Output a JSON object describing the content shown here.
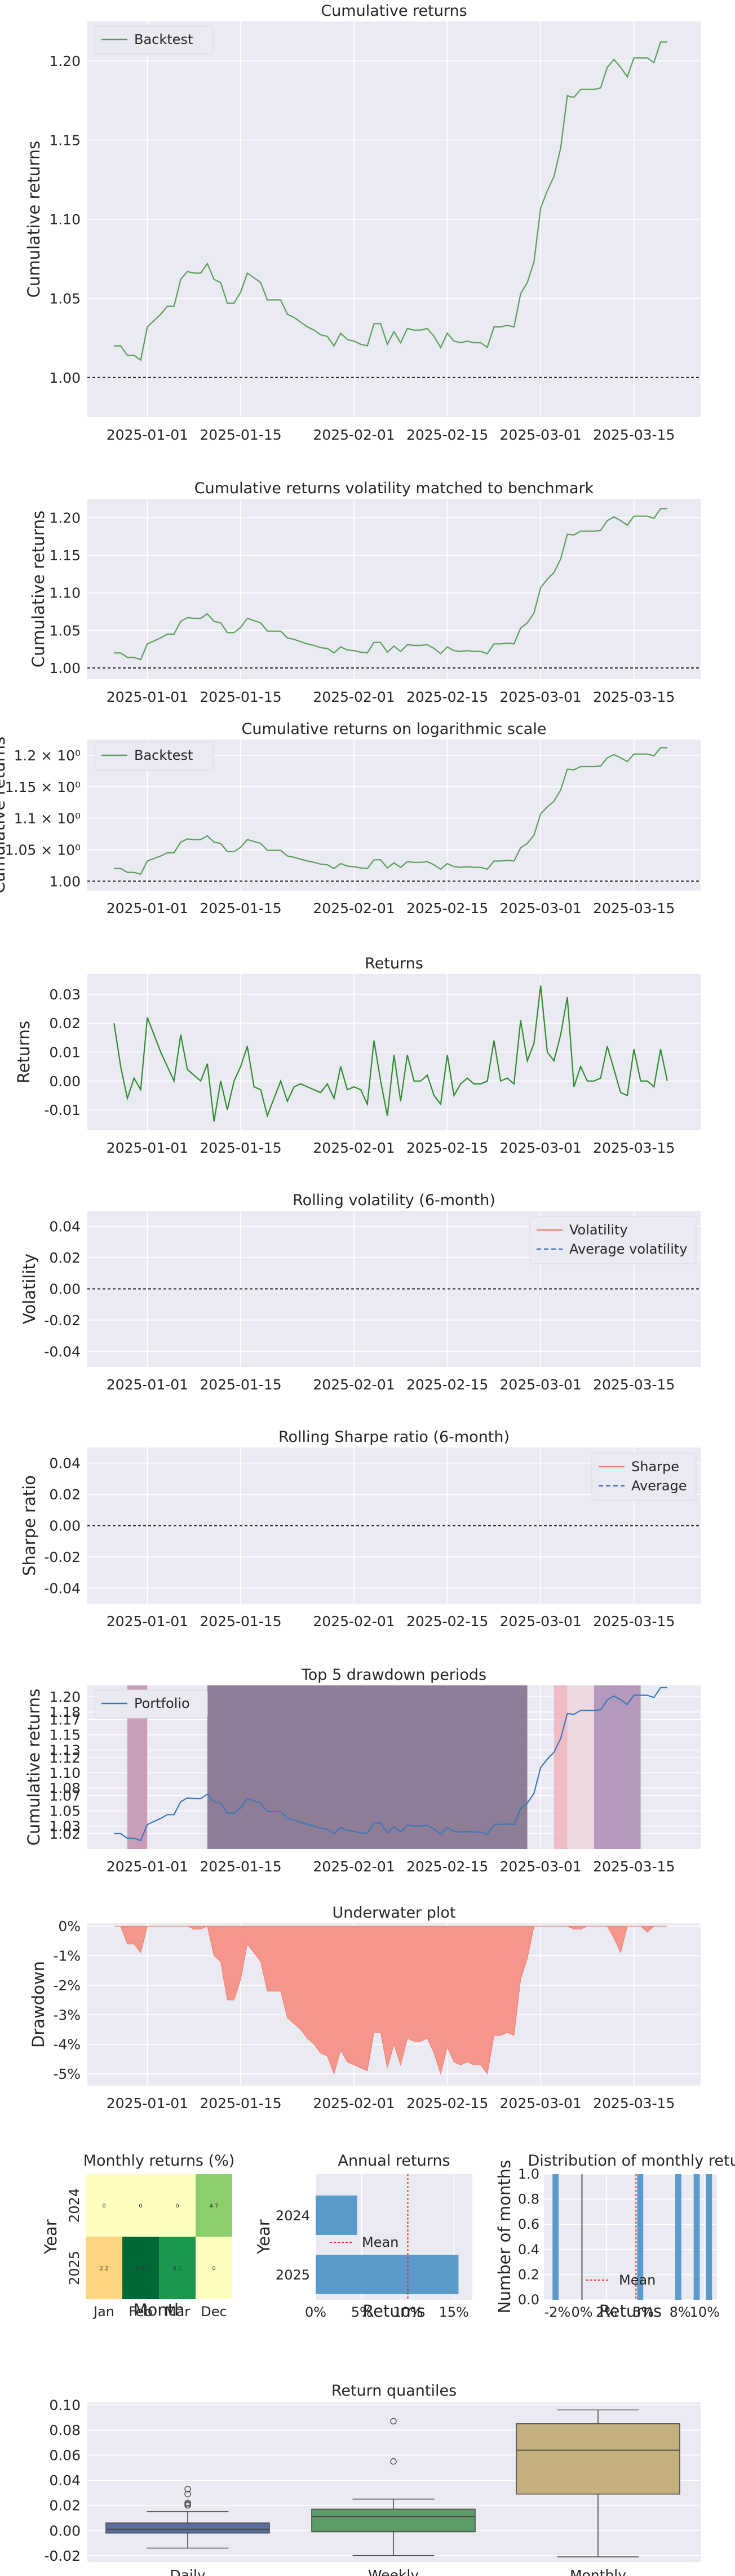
{
  "colors": {
    "panel_bg": "#eaeaf2",
    "grid": "#ffffff",
    "green_line": "#5a9d5a",
    "returns_line": "#2e8b2e",
    "vol_line": "#f08070",
    "avg_line": "#4c72b0",
    "portfolio_line": "#3b78b8",
    "drawdown_fill": "#f4968c",
    "bar_blue": "#5b9bcb",
    "mean_line": "#e0352b"
  },
  "x_dates": {
    "start": "2024-12-23",
    "end": "2025-03-25",
    "ticks": [
      "2025-01-01",
      "2025-01-15",
      "2025-02-01",
      "2025-02-15",
      "2025-03-01",
      "2025-03-15"
    ]
  },
  "chart_data": [
    {
      "id": "cumulative_returns",
      "type": "line",
      "title": "Cumulative returns",
      "ylabel": "Cumulative returns",
      "ylim": [
        0.975,
        1.225
      ],
      "yticks": [
        1.0,
        1.05,
        1.1,
        1.15,
        1.2
      ],
      "ytick_labels": [
        "1.00",
        "1.05",
        "1.10",
        "1.15",
        "1.20"
      ],
      "hline": 1.0,
      "legend": "Backtest",
      "x": [
        "2024-12-27",
        "2024-12-28",
        "2024-12-29",
        "2024-12-30",
        "2024-12-31",
        "2025-01-01",
        "2025-01-02",
        "2025-01-03",
        "2025-01-04",
        "2025-01-05",
        "2025-01-06",
        "2025-01-07",
        "2025-01-08",
        "2025-01-09",
        "2025-01-10",
        "2025-01-11",
        "2025-01-12",
        "2025-01-13",
        "2025-01-14",
        "2025-01-15",
        "2025-01-16",
        "2025-01-17",
        "2025-01-18",
        "2025-01-19",
        "2025-01-20",
        "2025-01-21",
        "2025-01-22",
        "2025-01-23",
        "2025-01-24",
        "2025-01-25",
        "2025-01-26",
        "2025-01-27",
        "2025-01-28",
        "2025-01-29",
        "2025-01-30",
        "2025-01-31",
        "2025-02-01",
        "2025-02-02",
        "2025-02-03",
        "2025-02-04",
        "2025-02-05",
        "2025-02-06",
        "2025-02-07",
        "2025-02-08",
        "2025-02-09",
        "2025-02-10",
        "2025-02-11",
        "2025-02-12",
        "2025-02-13",
        "2025-02-14",
        "2025-02-15",
        "2025-02-16",
        "2025-02-17",
        "2025-02-18",
        "2025-02-19",
        "2025-02-20",
        "2025-02-21",
        "2025-02-22",
        "2025-02-23",
        "2025-02-24",
        "2025-02-25",
        "2025-02-26",
        "2025-02-27",
        "2025-02-28",
        "2025-03-01",
        "2025-03-02",
        "2025-03-03",
        "2025-03-04",
        "2025-03-05",
        "2025-03-06",
        "2025-03-07",
        "2025-03-08",
        "2025-03-09",
        "2025-03-10",
        "2025-03-11",
        "2025-03-12",
        "2025-03-13",
        "2025-03-14",
        "2025-03-15",
        "2025-03-16",
        "2025-03-17",
        "2025-03-18",
        "2025-03-19",
        "2025-03-20"
      ],
      "y": [
        1.02,
        1.02,
        1.014,
        1.014,
        1.011,
        1.032,
        1.036,
        1.04,
        1.045,
        1.045,
        1.062,
        1.067,
        1.066,
        1.066,
        1.072,
        1.062,
        1.06,
        1.047,
        1.047,
        1.054,
        1.066,
        1.063,
        1.06,
        1.049,
        1.049,
        1.049,
        1.04,
        1.038,
        1.035,
        1.032,
        1.03,
        1.027,
        1.026,
        1.02,
        1.028,
        1.024,
        1.023,
        1.021,
        1.02,
        1.034,
        1.034,
        1.021,
        1.029,
        1.022,
        1.031,
        1.03,
        1.03,
        1.031,
        1.026,
        1.019,
        1.028,
        1.023,
        1.022,
        1.023,
        1.022,
        1.022,
        1.019,
        1.032,
        1.032,
        1.033,
        1.032,
        1.053,
        1.06,
        1.073,
        1.107,
        1.118,
        1.127,
        1.145,
        1.178,
        1.177,
        1.182,
        1.182,
        1.182,
        1.183,
        1.196,
        1.201,
        1.196,
        1.19,
        1.202,
        1.202,
        1.202,
        1.199,
        1.212,
        1.212
      ]
    },
    {
      "id": "vol_matched",
      "type": "line",
      "title": "Cumulative returns volatility matched to benchmark",
      "ylabel": "Cumulative returns",
      "ylim": [
        0.985,
        1.225
      ],
      "yticks": [
        1.0,
        1.05,
        1.1,
        1.15,
        1.2
      ],
      "ytick_labels": [
        "1.00",
        "1.05",
        "1.10",
        "1.15",
        "1.20"
      ],
      "hline": 1.0,
      "same_as": "cumulative_returns"
    },
    {
      "id": "log_scale",
      "type": "line",
      "title": "Cumulative returns on logarithmic scale",
      "ylabel": "Cumulative returns",
      "ylim": [
        0.985,
        1.225
      ],
      "yticks": [
        1.0,
        1.05,
        1.1,
        1.15,
        1.2
      ],
      "ytick_labels": [
        "1.00",
        "1.05 × 10⁰",
        "1.1 × 10⁰",
        "1.15 × 10⁰",
        "1.2 × 10⁰"
      ],
      "hline": 1.0,
      "legend": "Backtest",
      "same_as": "cumulative_returns"
    },
    {
      "id": "returns",
      "type": "line",
      "title": "Returns",
      "ylabel": "Returns",
      "ylim": [
        -0.017,
        0.037
      ],
      "yticks": [
        -0.01,
        0.0,
        0.01,
        0.02,
        0.03
      ],
      "ytick_labels": [
        "-0.01",
        "0.00",
        "0.01",
        "0.02",
        "0.03"
      ],
      "x": [
        "2024-12-27",
        "2024-12-28",
        "2024-12-29",
        "2024-12-30",
        "2024-12-31",
        "2025-01-01",
        "2025-01-02",
        "2025-01-03",
        "2025-01-04",
        "2025-01-05",
        "2025-01-06",
        "2025-01-07",
        "2025-01-08",
        "2025-01-09",
        "2025-01-10",
        "2025-01-11",
        "2025-01-12",
        "2025-01-13",
        "2025-01-14",
        "2025-01-15",
        "2025-01-16",
        "2025-01-17",
        "2025-01-18",
        "2025-01-19",
        "2025-01-20",
        "2025-01-21",
        "2025-01-22",
        "2025-01-23",
        "2025-01-24",
        "2025-01-25",
        "2025-01-26",
        "2025-01-27",
        "2025-01-28",
        "2025-01-29",
        "2025-01-30",
        "2025-01-31",
        "2025-02-01",
        "2025-02-02",
        "2025-02-03",
        "2025-02-04",
        "2025-02-05",
        "2025-02-06",
        "2025-02-07",
        "2025-02-08",
        "2025-02-09",
        "2025-02-10",
        "2025-02-11",
        "2025-02-12",
        "2025-02-13",
        "2025-02-14",
        "2025-02-15",
        "2025-02-16",
        "2025-02-17",
        "2025-02-18",
        "2025-02-19",
        "2025-02-20",
        "2025-02-21",
        "2025-02-22",
        "2025-02-23",
        "2025-02-24",
        "2025-02-25",
        "2025-02-26",
        "2025-02-27",
        "2025-02-28",
        "2025-03-01",
        "2025-03-02",
        "2025-03-03",
        "2025-03-04",
        "2025-03-05",
        "2025-03-06",
        "2025-03-07",
        "2025-03-08",
        "2025-03-09",
        "2025-03-10",
        "2025-03-11",
        "2025-03-12",
        "2025-03-13",
        "2025-03-14",
        "2025-03-15",
        "2025-03-16",
        "2025-03-17",
        "2025-03-18",
        "2025-03-19",
        "2025-03-20"
      ],
      "y": [
        0.02,
        0.005,
        -0.006,
        0.001,
        -0.003,
        0.022,
        0.016,
        0.01,
        0.005,
        0.0,
        0.016,
        0.004,
        0.002,
        0.0,
        0.006,
        -0.014,
        0.0,
        -0.01,
        0.0,
        0.005,
        0.012,
        -0.002,
        -0.003,
        -0.012,
        -0.006,
        0.0,
        -0.007,
        -0.002,
        -0.001,
        -0.002,
        -0.003,
        -0.004,
        -0.001,
        -0.006,
        0.005,
        -0.003,
        -0.002,
        -0.003,
        -0.008,
        0.014,
        0.0,
        -0.012,
        0.009,
        -0.007,
        0.009,
        0.0,
        0.0,
        0.002,
        -0.005,
        -0.008,
        0.009,
        -0.005,
        -0.001,
        0.001,
        -0.001,
        -0.001,
        0.0,
        0.014,
        0.0,
        0.001,
        -0.001,
        0.021,
        0.007,
        0.013,
        0.033,
        0.01,
        0.007,
        0.016,
        0.029,
        -0.002,
        0.005,
        0.0,
        0.0,
        0.001,
        0.012,
        0.004,
        -0.004,
        -0.005,
        0.011,
        0.0,
        0.0,
        -0.002,
        0.011,
        0.0
      ]
    },
    {
      "id": "rolling_vol",
      "type": "line",
      "title": "Rolling volatility (6-month)",
      "ylabel": "Volatility",
      "ylim": [
        -0.05,
        0.05
      ],
      "yticks": [
        -0.04,
        -0.02,
        0.0,
        0.02,
        0.04
      ],
      "ytick_labels": [
        "-0.04",
        "-0.02",
        "0.00",
        "0.02",
        "0.04"
      ],
      "hline": 0.0,
      "series": [
        {
          "name": "Volatility",
          "values": []
        },
        {
          "name": "Average volatility",
          "values": []
        }
      ]
    },
    {
      "id": "rolling_sharpe",
      "type": "line",
      "title": "Rolling Sharpe ratio (6-month)",
      "ylabel": "Sharpe ratio",
      "ylim": [
        -0.05,
        0.05
      ],
      "yticks": [
        -0.04,
        -0.02,
        0.0,
        0.02,
        0.04
      ],
      "ytick_labels": [
        "-0.04",
        "-0.02",
        "0.00",
        "0.02",
        "0.04"
      ],
      "hline": 0.0,
      "series": [
        {
          "name": "Sharpe",
          "values": []
        },
        {
          "name": "Average",
          "values": []
        }
      ]
    },
    {
      "id": "drawdown_periods",
      "type": "line",
      "title": "Top 5 drawdown periods",
      "ylabel": "Cumulative returns",
      "ylim": [
        1.0,
        1.215
      ],
      "yticks": [
        1.02,
        1.03,
        1.05,
        1.07,
        1.08,
        1.1,
        1.12,
        1.13,
        1.15,
        1.17,
        1.18,
        1.2
      ],
      "ytick_labels": [
        "1.02",
        "1.03",
        "1.05",
        "1.07",
        "1.08",
        "1.10",
        "1.12",
        "1.13",
        "1.15",
        "1.17",
        "1.18",
        "1.20"
      ],
      "legend": "Portfolio",
      "periods": [
        {
          "start": "2024-12-29",
          "end": "2025-01-01",
          "color": "#c38fb0"
        },
        {
          "start": "2025-01-10",
          "end": "2025-02-27",
          "color": "#7d6a87"
        },
        {
          "start": "2025-03-03",
          "end": "2025-03-05",
          "color": "#f0b3bd"
        },
        {
          "start": "2025-03-05",
          "end": "2025-03-09",
          "color": "#edd6de"
        },
        {
          "start": "2025-03-09",
          "end": "2025-03-16",
          "color": "#a98cb4"
        }
      ],
      "same_as": "cumulative_returns"
    },
    {
      "id": "underwater",
      "type": "area",
      "title": "Underwater plot",
      "ylabel": "Drawdown",
      "ylim": [
        -5.4,
        0.1
      ],
      "yticks": [
        0,
        -1,
        -2,
        -3,
        -4,
        -5
      ],
      "ytick_labels": [
        "0%",
        "-1%",
        "-2%",
        "-3%",
        "-4%",
        "-5%"
      ],
      "x": [
        "2024-12-27",
        "2024-12-28",
        "2024-12-29",
        "2024-12-30",
        "2024-12-31",
        "2025-01-01",
        "2025-01-02",
        "2025-01-03",
        "2025-01-04",
        "2025-01-05",
        "2025-01-06",
        "2025-01-07",
        "2025-01-08",
        "2025-01-09",
        "2025-01-10",
        "2025-01-11",
        "2025-01-12",
        "2025-01-13",
        "2025-01-14",
        "2025-01-15",
        "2025-01-16",
        "2025-01-17",
        "2025-01-18",
        "2025-01-19",
        "2025-01-20",
        "2025-01-21",
        "2025-01-22",
        "2025-01-23",
        "2025-01-24",
        "2025-01-25",
        "2025-01-26",
        "2025-01-27",
        "2025-01-28",
        "2025-01-29",
        "2025-01-30",
        "2025-01-31",
        "2025-02-01",
        "2025-02-02",
        "2025-02-03",
        "2025-02-04",
        "2025-02-05",
        "2025-02-06",
        "2025-02-07",
        "2025-02-08",
        "2025-02-09",
        "2025-02-10",
        "2025-02-11",
        "2025-02-12",
        "2025-02-13",
        "2025-02-14",
        "2025-02-15",
        "2025-02-16",
        "2025-02-17",
        "2025-02-18",
        "2025-02-19",
        "2025-02-20",
        "2025-02-21",
        "2025-02-22",
        "2025-02-23",
        "2025-02-24",
        "2025-02-25",
        "2025-02-26",
        "2025-02-27",
        "2025-02-28",
        "2025-03-01",
        "2025-03-02",
        "2025-03-03",
        "2025-03-04",
        "2025-03-05",
        "2025-03-06",
        "2025-03-07",
        "2025-03-08",
        "2025-03-09",
        "2025-03-10",
        "2025-03-11",
        "2025-03-12",
        "2025-03-13",
        "2025-03-14",
        "2025-03-15",
        "2025-03-16",
        "2025-03-17",
        "2025-03-18",
        "2025-03-19",
        "2025-03-20"
      ],
      "y": [
        0,
        0,
        -0.6,
        -0.6,
        -0.9,
        0,
        0,
        0,
        0,
        0,
        0,
        0,
        -0.1,
        -0.1,
        0,
        -1.0,
        -1.2,
        -2.5,
        -2.5,
        -1.8,
        -0.6,
        -0.9,
        -1.2,
        -2.2,
        -2.2,
        -2.2,
        -3.1,
        -3.3,
        -3.5,
        -3.8,
        -4.0,
        -4.3,
        -4.4,
        -5.0,
        -4.2,
        -4.6,
        -4.7,
        -4.8,
        -4.9,
        -3.6,
        -3.6,
        -4.8,
        -4.0,
        -4.7,
        -3.8,
        -3.9,
        -3.9,
        -3.8,
        -4.3,
        -5.0,
        -4.1,
        -4.6,
        -4.7,
        -4.6,
        -4.7,
        -4.7,
        -5.0,
        -3.7,
        -3.7,
        -3.6,
        -3.7,
        -1.8,
        -1.1,
        0,
        0,
        0,
        0,
        0,
        0,
        -0.1,
        -0.1,
        0,
        0,
        0,
        0,
        -0.4,
        -0.9,
        0,
        0,
        0,
        -0.2,
        0,
        0,
        0
      ]
    },
    {
      "id": "monthly_heatmap",
      "type": "heatmap",
      "title": "Monthly returns (%)",
      "xlabel": "Month",
      "ylabel": "Year",
      "columns": [
        "Jan",
        "Feb",
        "Mar",
        "Dec"
      ],
      "rows": [
        "2024",
        "2025"
      ],
      "cells": [
        [
          "0",
          "0",
          "0",
          "4.7"
        ],
        [
          "2.2",
          "9.6",
          "8.1",
          "0"
        ]
      ],
      "values": [
        [
          0,
          0,
          0,
          4.7
        ],
        [
          2.2,
          9.6,
          8.1,
          0
        ]
      ]
    },
    {
      "id": "annual_returns",
      "type": "bar",
      "title": "Annual returns",
      "xlabel": "Returns",
      "ylabel": "Year",
      "categories": [
        "2024",
        "2025"
      ],
      "values": [
        4.5,
        15.5
      ],
      "mean": 10.0,
      "mean_label": "Mean",
      "xlim": [
        0,
        17
      ],
      "xticks": [
        0,
        5,
        10,
        15
      ],
      "xtick_labels": [
        "0%",
        "5%",
        "10%",
        "15%"
      ]
    },
    {
      "id": "monthly_distribution",
      "type": "bar",
      "title": "Distribution of monthly returns",
      "xlabel": "Returns",
      "ylabel": "Number of months",
      "bins": [
        [
          -2.4,
          -1.9
        ],
        [
          4.5,
          5.0
        ],
        [
          7.6,
          8.1
        ],
        [
          9.1,
          9.6
        ],
        [
          10.1,
          10.6
        ]
      ],
      "values": [
        1,
        1,
        1,
        1,
        1
      ],
      "mean": 4.4,
      "mean_label": "Mean",
      "xlim": [
        -3.1,
        11.0
      ],
      "ylim": [
        0,
        1.0
      ],
      "yticks": [
        0.0,
        0.2,
        0.4,
        0.6,
        0.8,
        1.0
      ],
      "ytick_labels": [
        "0.0",
        "0.2",
        "0.4",
        "0.6",
        "0.8",
        "1.0"
      ],
      "xticks": [
        -2,
        0,
        2,
        5,
        8,
        10
      ],
      "xtick_labels": [
        "-2%",
        "0%",
        "2%",
        "5%",
        "8%",
        "10%"
      ]
    },
    {
      "id": "return_quantiles",
      "type": "box",
      "title": "Return quantiles",
      "categories": [
        "Daily",
        "Weekly",
        "Monthly"
      ],
      "colors": [
        "#5a6f9f",
        "#5d9b69",
        "#c4b07f"
      ],
      "ylim": [
        -0.025,
        0.102
      ],
      "yticks": [
        -0.02,
        0.0,
        0.02,
        0.04,
        0.06,
        0.08,
        0.1
      ],
      "ytick_labels": [
        "-0.02",
        "0.00",
        "0.02",
        "0.04",
        "0.06",
        "0.08",
        "0.10"
      ],
      "boxes": [
        {
          "whisker_low": -0.014,
          "q1": -0.002,
          "median": 0.001,
          "q3": 0.006,
          "whisker_high": 0.015,
          "outliers": [
            0.02,
            0.021,
            0.022,
            0.029,
            0.033
          ]
        },
        {
          "whisker_low": -0.02,
          "q1": -0.001,
          "median": 0.011,
          "q3": 0.017,
          "whisker_high": 0.025,
          "outliers": [
            0.055,
            0.087
          ]
        },
        {
          "whisker_low": -0.021,
          "q1": 0.029,
          "median": 0.064,
          "q3": 0.085,
          "whisker_high": 0.096,
          "outliers": []
        }
      ]
    }
  ]
}
